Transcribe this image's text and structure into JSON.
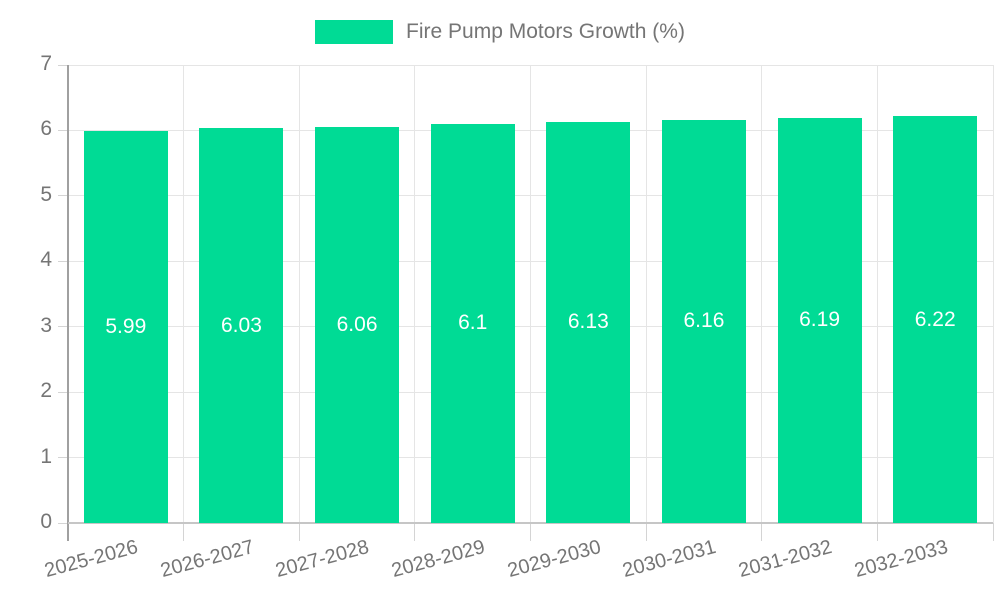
{
  "legend": {
    "swatch_color": "#00DB95"
  },
  "chart_data": {
    "type": "bar",
    "title": "Fire Pump Motors Growth (%)",
    "categories": [
      "2025-2026",
      "2026-2027",
      "2027-2028",
      "2028-2029",
      "2029-2030",
      "2030-2031",
      "2031-2032",
      "2032-2033"
    ],
    "values": [
      5.99,
      6.03,
      6.06,
      6.1,
      6.13,
      6.16,
      6.19,
      6.22
    ],
    "xlabel": "",
    "ylabel": "",
    "ylim": [
      0,
      7
    ],
    "y_ticks": [
      0,
      1,
      2,
      3,
      4,
      5,
      6,
      7
    ],
    "y_tick_labels": [
      "0",
      "1",
      "2",
      "3",
      "4",
      "5",
      "6",
      "7"
    ],
    "grid": true,
    "legend_position": "top-center",
    "bar_color": "#00DB95",
    "bar_value_label_color": "#ffffff",
    "axis_text_color": "#757575",
    "x_tick_rotation_deg": -15
  }
}
